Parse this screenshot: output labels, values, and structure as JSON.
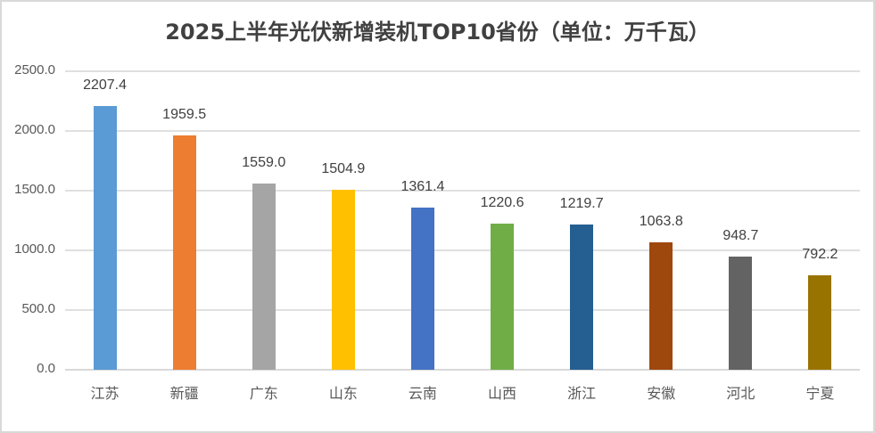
{
  "chart_data": {
    "type": "bar",
    "title": "2025上半年光伏新增装机TOP10省份（单位：万千瓦）",
    "xlabel": "",
    "ylabel": "",
    "ylim": [
      0,
      2500
    ],
    "yticks": [
      "0.0",
      "500.0",
      "1000.0",
      "1500.0",
      "2000.0",
      "2500.0"
    ],
    "grid": true,
    "legend": null,
    "categories": [
      "江苏",
      "新疆",
      "广东",
      "山东",
      "云南",
      "山西",
      "浙江",
      "安徽",
      "河北",
      "宁夏"
    ],
    "values": [
      2207.4,
      1959.5,
      1559.0,
      1504.9,
      1361.4,
      1220.6,
      1219.7,
      1063.8,
      948.7,
      792.2
    ],
    "value_labels": [
      "2207.4",
      "1959.5",
      "1559.0",
      "1504.9",
      "1361.4",
      "1220.6",
      "1219.7",
      "1063.8",
      "948.7",
      "792.2"
    ],
    "colors": [
      "#5B9BD5",
      "#ED7D31",
      "#A5A5A5",
      "#FFC000",
      "#4472C4",
      "#70AD47",
      "#255E91",
      "#9E480E",
      "#636363",
      "#997300"
    ]
  }
}
